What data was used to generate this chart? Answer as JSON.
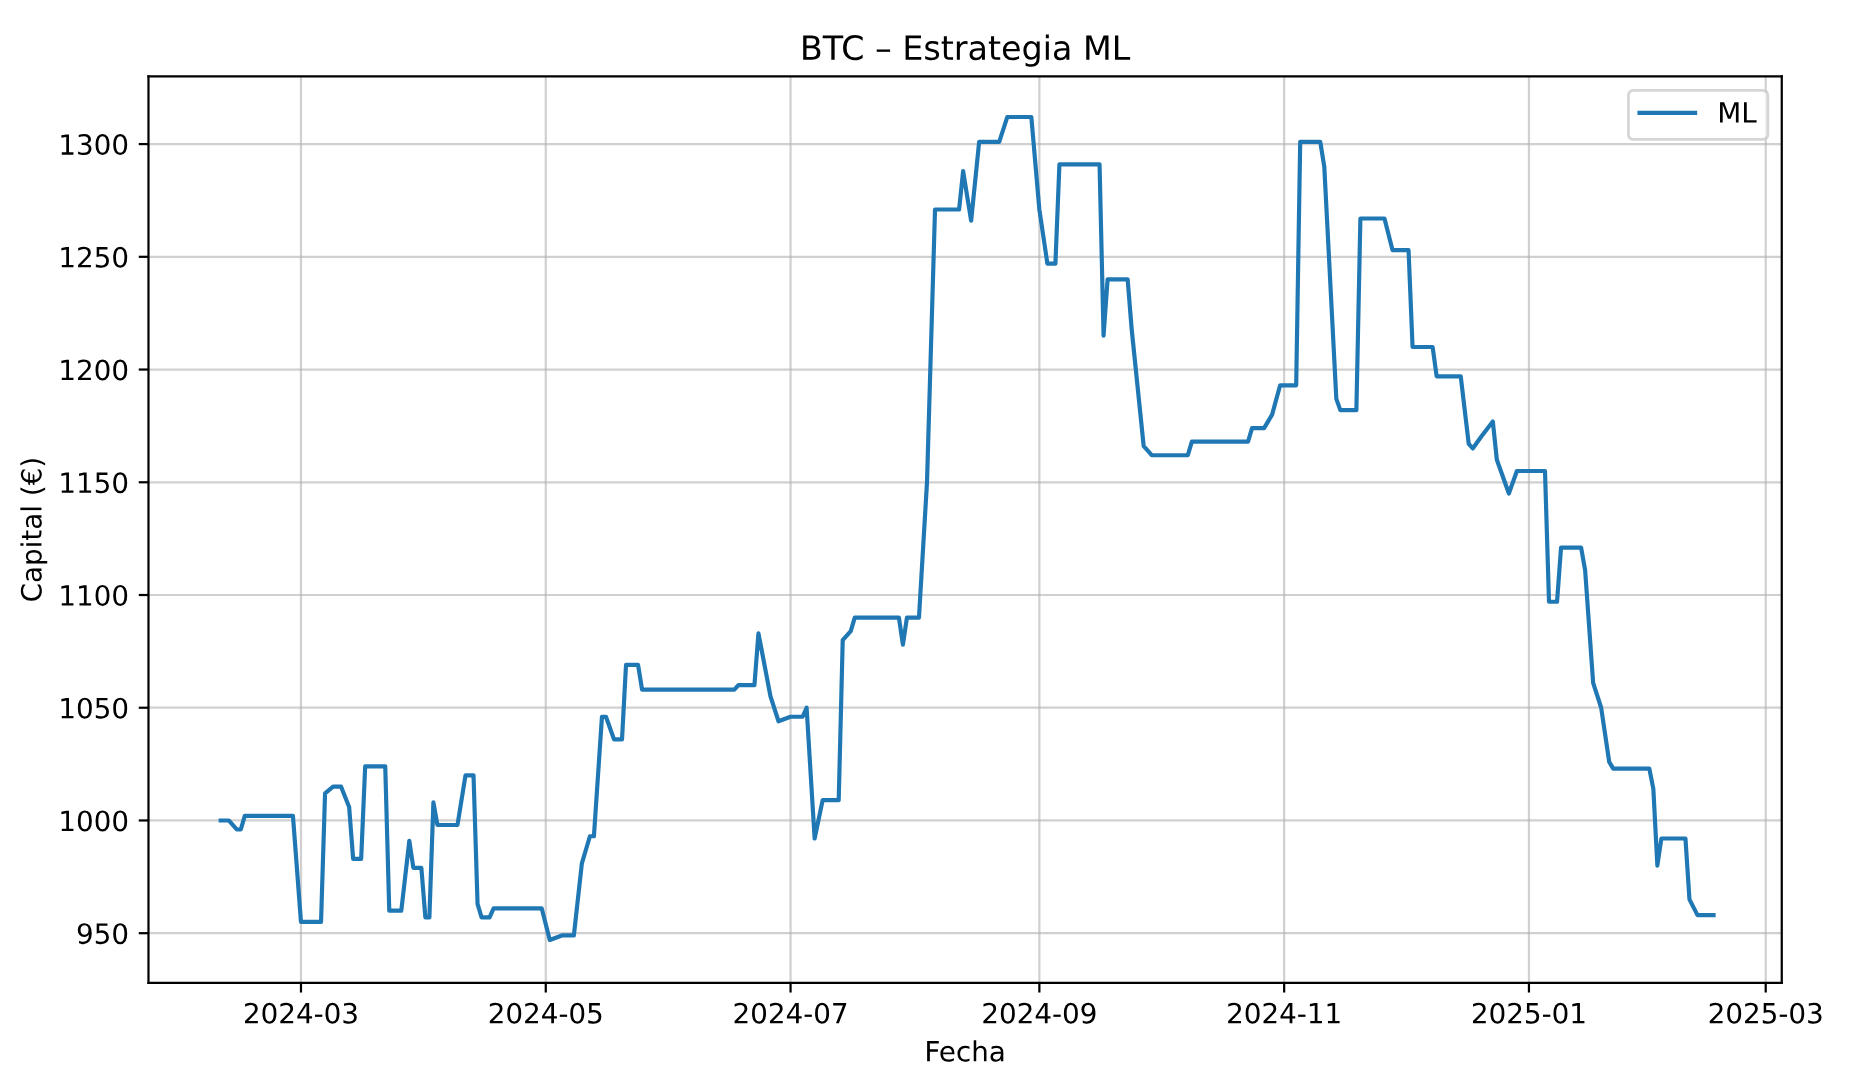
{
  "chart_data": {
    "type": "line",
    "title": "BTC – Estrategia ML",
    "xlabel": "Fecha",
    "ylabel": "Capital (€)",
    "xlim": [
      "2024-01-23",
      "2025-03-05"
    ],
    "ylim": [
      928,
      1330
    ],
    "xticks": [
      "2024-03",
      "2024-05",
      "2024-07",
      "2024-09",
      "2024-11",
      "2025-01",
      "2025-03"
    ],
    "yticks": [
      950,
      1000,
      1050,
      1100,
      1150,
      1200,
      1250,
      1300
    ],
    "grid": true,
    "legend": "top right",
    "marker": "none",
    "line_style": "solid",
    "series": [
      {
        "name": "ML",
        "color": "#1f77b4",
        "x": [
          "2024-02-10",
          "2024-02-12",
          "2024-02-14",
          "2024-02-15",
          "2024-02-16",
          "2024-02-28",
          "2024-03-01",
          "2024-03-06",
          "2024-03-07",
          "2024-03-09",
          "2024-03-11",
          "2024-03-13",
          "2024-03-14",
          "2024-03-16",
          "2024-03-17",
          "2024-03-22",
          "2024-03-23",
          "2024-03-26",
          "2024-03-28",
          "2024-03-29",
          "2024-03-31",
          "2024-04-01",
          "2024-04-02",
          "2024-04-03",
          "2024-04-04",
          "2024-04-09",
          "2024-04-11",
          "2024-04-13",
          "2024-04-14",
          "2024-04-15",
          "2024-04-17",
          "2024-04-18",
          "2024-04-30",
          "2024-05-02",
          "2024-05-05",
          "2024-05-08",
          "2024-05-10",
          "2024-05-12",
          "2024-05-13",
          "2024-05-15",
          "2024-05-16",
          "2024-05-18",
          "2024-05-20",
          "2024-05-21",
          "2024-05-24",
          "2024-05-25",
          "2024-06-17",
          "2024-06-18",
          "2024-06-22",
          "2024-06-23",
          "2024-06-26",
          "2024-06-28",
          "2024-07-01",
          "2024-07-04",
          "2024-07-05",
          "2024-07-07",
          "2024-07-09",
          "2024-07-13",
          "2024-07-14",
          "2024-07-16",
          "2024-07-17",
          "2024-07-28",
          "2024-07-29",
          "2024-07-30",
          "2024-08-02",
          "2024-08-04",
          "2024-08-06",
          "2024-08-12",
          "2024-08-13",
          "2024-08-15",
          "2024-08-17",
          "2024-08-22",
          "2024-08-24",
          "2024-08-30",
          "2024-09-01",
          "2024-09-03",
          "2024-09-05",
          "2024-09-06",
          "2024-09-16",
          "2024-09-17",
          "2024-09-18",
          "2024-09-23",
          "2024-09-24",
          "2024-09-27",
          "2024-09-29",
          "2024-10-08",
          "2024-10-09",
          "2024-10-23",
          "2024-10-24",
          "2024-10-27",
          "2024-10-29",
          "2024-10-31",
          "2024-11-04",
          "2024-11-05",
          "2024-11-10",
          "2024-11-11",
          "2024-11-14",
          "2024-11-15",
          "2024-11-19",
          "2024-11-20",
          "2024-11-26",
          "2024-11-28",
          "2024-12-02",
          "2024-12-03",
          "2024-12-08",
          "2024-12-09",
          "2024-12-15",
          "2024-12-17",
          "2024-12-18",
          "2024-12-20",
          "2024-12-23",
          "2024-12-24",
          "2024-12-27",
          "2024-12-29",
          "2025-01-05",
          "2025-01-06",
          "2025-01-08",
          "2025-01-09",
          "2025-01-14",
          "2025-01-15",
          "2025-01-17",
          "2025-01-19",
          "2025-01-21",
          "2025-01-22",
          "2025-01-31",
          "2025-02-01",
          "2025-02-02",
          "2025-02-03",
          "2025-02-09",
          "2025-02-10",
          "2025-02-12",
          "2025-02-16"
        ],
        "values": [
          1000,
          1000,
          996,
          996,
          1002,
          1002,
          955,
          955,
          1012,
          1015,
          1015,
          1006,
          983,
          983,
          1024,
          1024,
          960,
          960,
          991,
          979,
          979,
          957,
          957,
          1008,
          998,
          998,
          1020,
          1020,
          963,
          957,
          957,
          961,
          961,
          947,
          949,
          949,
          981,
          993,
          993,
          1046,
          1046,
          1036,
          1036,
          1069,
          1069,
          1058,
          1058,
          1060,
          1060,
          1083,
          1055,
          1044,
          1046,
          1046,
          1050,
          992,
          1009,
          1009,
          1080,
          1084,
          1090,
          1090,
          1078,
          1090,
          1090,
          1150,
          1271,
          1271,
          1288,
          1266,
          1301,
          1301,
          1312,
          1312,
          1271,
          1247,
          1247,
          1291,
          1291,
          1215,
          1240,
          1240,
          1218,
          1166,
          1162,
          1162,
          1168,
          1168,
          1174,
          1174,
          1180,
          1193,
          1193,
          1301,
          1301,
          1290,
          1187,
          1182,
          1182,
          1267,
          1267,
          1253,
          1253,
          1210,
          1210,
          1197,
          1197,
          1167,
          1165,
          1170,
          1177,
          1160,
          1145,
          1155,
          1155,
          1097,
          1097,
          1121,
          1121,
          1111,
          1061,
          1050,
          1026,
          1023,
          1023,
          1014,
          980,
          992,
          992,
          965,
          958,
          958
        ]
      }
    ]
  }
}
